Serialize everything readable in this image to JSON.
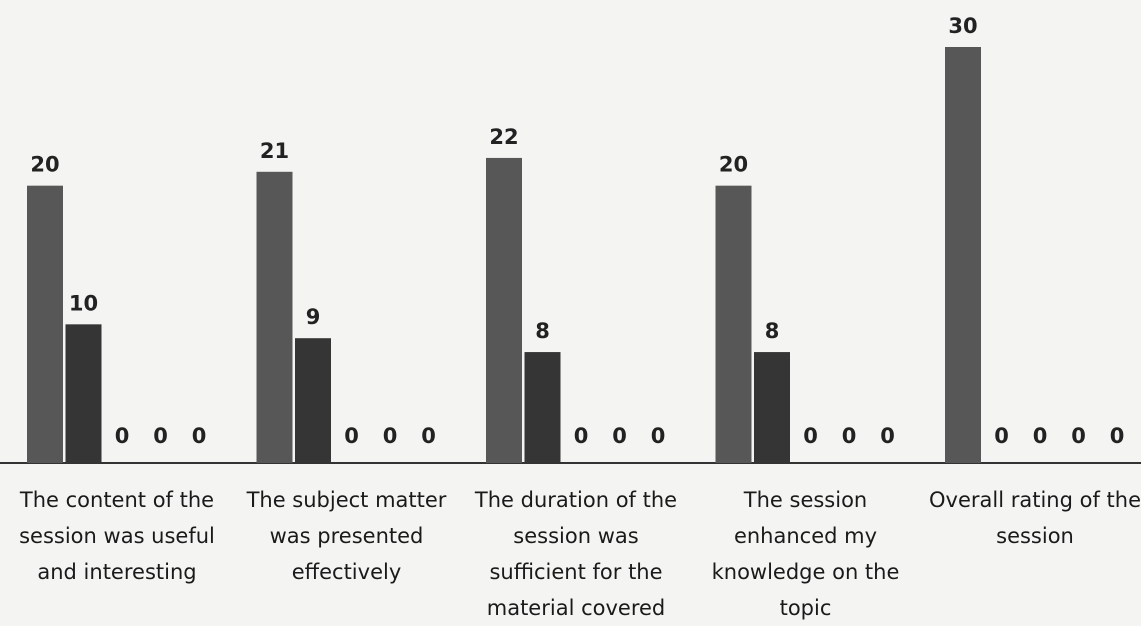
{
  "chart_data": {
    "type": "bar",
    "categories": [
      "The content of the session was useful and interesting",
      "The subject matter was presented effectively",
      "The duration of the session was sufficient for the material covered",
      "The session enhanced my knowledge on the topic",
      "Overall rating of the session"
    ],
    "series": [
      {
        "color": "#575757",
        "values": [
          20,
          21,
          22,
          20,
          30
        ]
      },
      {
        "color": "#353535",
        "values": [
          10,
          9,
          8,
          8,
          0
        ]
      },
      {
        "color": "#444444",
        "values": [
          0,
          0,
          0,
          0,
          0
        ]
      },
      {
        "color": "#444444",
        "values": [
          0,
          0,
          0,
          0,
          0
        ]
      },
      {
        "color": "#444444",
        "values": [
          0,
          0,
          0,
          0,
          0
        ]
      }
    ]
  }
}
